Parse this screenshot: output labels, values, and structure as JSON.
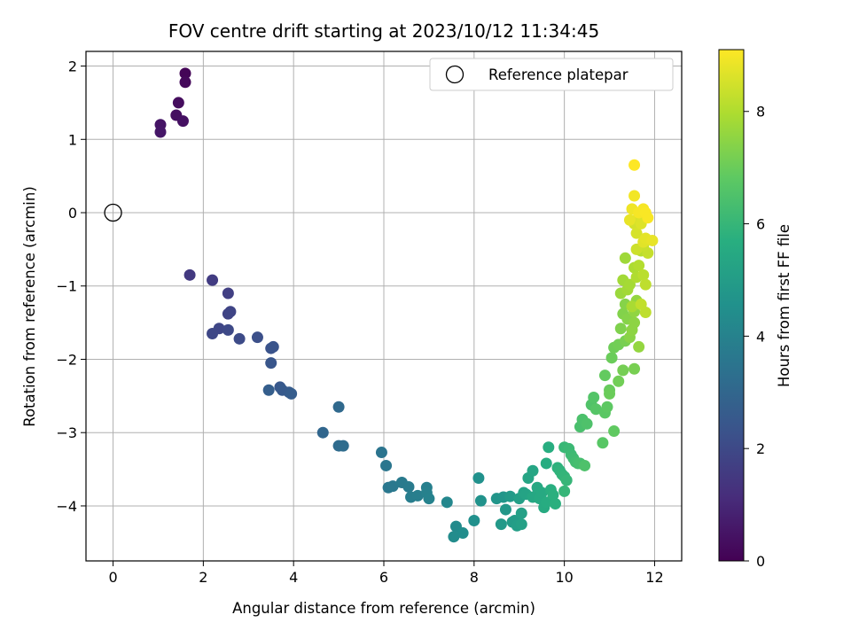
{
  "chart_data": {
    "type": "scatter",
    "title": "FOV centre drift starting at 2023/10/12 11:34:45",
    "xlabel": "Angular distance from reference (arcmin)",
    "ylabel": "Rotation from reference (arcmin)",
    "xlim": [
      -0.6,
      12.6
    ],
    "ylim": [
      -4.75,
      2.2
    ],
    "xticks": [
      0,
      2,
      4,
      6,
      8,
      10,
      12
    ],
    "yticks": [
      -4,
      -3,
      -2,
      -1,
      0,
      1,
      2
    ],
    "grid": true,
    "legend": {
      "placement": "top-right",
      "entries": [
        "Reference platepar"
      ]
    },
    "reference_point": {
      "x": 0,
      "y": 0
    },
    "colorbar": {
      "label": "Hours from first FF file",
      "colormap": "viridis",
      "range": [
        0,
        9.1
      ],
      "ticks": [
        0,
        2,
        4,
        6,
        8
      ]
    },
    "points": [
      [
        1.6,
        1.9,
        0.1
      ],
      [
        1.6,
        1.78,
        0.2
      ],
      [
        1.45,
        1.5,
        0.3
      ],
      [
        1.4,
        1.33,
        0.35
      ],
      [
        1.55,
        1.25,
        0.4
      ],
      [
        1.05,
        1.2,
        0.5
      ],
      [
        1.05,
        1.1,
        0.55
      ],
      [
        1.7,
        -0.85,
        1.5
      ],
      [
        2.2,
        -0.92,
        1.6
      ],
      [
        2.55,
        -1.1,
        1.7
      ],
      [
        2.55,
        -1.38,
        1.8
      ],
      [
        2.6,
        -1.35,
        1.85
      ],
      [
        2.35,
        -1.58,
        1.9
      ],
      [
        2.2,
        -1.65,
        1.95
      ],
      [
        2.55,
        -1.6,
        2.0
      ],
      [
        2.8,
        -1.72,
        2.05
      ],
      [
        3.2,
        -1.7,
        2.2
      ],
      [
        3.5,
        -1.85,
        2.3
      ],
      [
        3.55,
        -1.83,
        2.35
      ],
      [
        3.5,
        -2.05,
        2.4
      ],
      [
        3.7,
        -2.38,
        2.5
      ],
      [
        3.75,
        -2.42,
        2.55
      ],
      [
        3.9,
        -2.45,
        2.6
      ],
      [
        3.95,
        -2.47,
        2.65
      ],
      [
        3.45,
        -2.42,
        2.7
      ],
      [
        4.65,
        -3.0,
        3.0
      ],
      [
        5.0,
        -2.65,
        3.1
      ],
      [
        5.0,
        -3.18,
        3.15
      ],
      [
        5.1,
        -3.18,
        3.2
      ],
      [
        5.95,
        -3.27,
        3.5
      ],
      [
        6.05,
        -3.45,
        3.55
      ],
      [
        6.1,
        -3.75,
        3.6
      ],
      [
        6.2,
        -3.73,
        3.65
      ],
      [
        6.4,
        -3.68,
        3.7
      ],
      [
        6.55,
        -3.74,
        3.75
      ],
      [
        6.6,
        -3.88,
        3.8
      ],
      [
        6.75,
        -3.86,
        3.85
      ],
      [
        6.95,
        -3.75,
        3.9
      ],
      [
        6.95,
        -3.82,
        3.95
      ],
      [
        7.0,
        -3.9,
        4.0
      ],
      [
        7.4,
        -3.95,
        4.2
      ],
      [
        7.6,
        -4.28,
        4.3
      ],
      [
        7.55,
        -4.42,
        4.35
      ],
      [
        7.75,
        -4.37,
        4.4
      ],
      [
        8.0,
        -4.2,
        4.5
      ],
      [
        8.1,
        -3.62,
        4.55
      ],
      [
        8.15,
        -3.93,
        4.6
      ],
      [
        8.5,
        -3.9,
        4.7
      ],
      [
        8.65,
        -3.88,
        4.75
      ],
      [
        8.7,
        -4.05,
        4.8
      ],
      [
        8.6,
        -4.25,
        4.85
      ],
      [
        8.8,
        -3.87,
        4.9
      ],
      [
        8.85,
        -4.22,
        4.95
      ],
      [
        8.9,
        -4.2,
        5.0
      ],
      [
        8.95,
        -4.27,
        5.05
      ],
      [
        9.0,
        -3.9,
        5.1
      ],
      [
        9.05,
        -4.1,
        5.15
      ],
      [
        9.05,
        -4.25,
        5.15
      ],
      [
        9.1,
        -3.82,
        5.2
      ],
      [
        9.15,
        -3.84,
        5.25
      ],
      [
        9.2,
        -3.62,
        5.3
      ],
      [
        9.3,
        -3.52,
        5.35
      ],
      [
        9.3,
        -3.88,
        5.4
      ],
      [
        9.4,
        -3.75,
        5.45
      ],
      [
        9.45,
        -3.9,
        5.5
      ],
      [
        9.5,
        -3.82,
        5.5
      ],
      [
        9.55,
        -4.02,
        5.55
      ],
      [
        9.6,
        -3.95,
        5.6
      ],
      [
        9.6,
        -3.42,
        5.6
      ],
      [
        9.65,
        -3.2,
        5.65
      ],
      [
        9.7,
        -3.78,
        5.7
      ],
      [
        9.75,
        -3.85,
        5.75
      ],
      [
        9.8,
        -3.97,
        5.75
      ],
      [
        9.85,
        -3.48,
        5.8
      ],
      [
        9.9,
        -3.52,
        5.85
      ],
      [
        9.95,
        -3.57,
        5.9
      ],
      [
        10.0,
        -3.6,
        5.95
      ],
      [
        10.0,
        -3.8,
        6.0
      ],
      [
        10.05,
        -3.65,
        6.0
      ],
      [
        10.0,
        -3.2,
        6.05
      ],
      [
        10.1,
        -3.22,
        6.1
      ],
      [
        10.15,
        -3.3,
        6.15
      ],
      [
        10.2,
        -3.35,
        6.2
      ],
      [
        10.25,
        -3.4,
        6.25
      ],
      [
        10.3,
        -3.42,
        6.3
      ],
      [
        10.35,
        -3.42,
        6.35
      ],
      [
        10.35,
        -2.92,
        6.4
      ],
      [
        10.4,
        -2.82,
        6.45
      ],
      [
        10.45,
        -3.45,
        6.5
      ],
      [
        10.5,
        -2.88,
        6.5
      ],
      [
        10.6,
        -2.62,
        6.55
      ],
      [
        10.65,
        -2.52,
        6.6
      ],
      [
        10.7,
        -2.68,
        6.65
      ],
      [
        10.85,
        -3.14,
        6.7
      ],
      [
        10.9,
        -2.73,
        6.75
      ],
      [
        10.95,
        -2.65,
        6.8
      ],
      [
        11.1,
        -2.98,
        6.85
      ],
      [
        10.9,
        -2.22,
        6.9
      ],
      [
        11.0,
        -2.42,
        6.95
      ],
      [
        11.05,
        -1.98,
        7.0
      ],
      [
        11.0,
        -2.47,
        7.0
      ],
      [
        11.1,
        -1.84,
        7.05
      ],
      [
        11.2,
        -2.3,
        7.1
      ],
      [
        11.2,
        -1.8,
        7.1
      ],
      [
        11.3,
        -2.15,
        7.15
      ],
      [
        11.35,
        -1.75,
        7.2
      ],
      [
        11.55,
        -2.13,
        7.2
      ],
      [
        11.25,
        -1.58,
        7.3
      ],
      [
        11.3,
        -1.38,
        7.35
      ],
      [
        11.35,
        -1.25,
        7.4
      ],
      [
        11.4,
        -1.45,
        7.4
      ],
      [
        11.45,
        -1.7,
        7.45
      ],
      [
        11.5,
        -1.6,
        7.5
      ],
      [
        11.55,
        -1.5,
        7.5
      ],
      [
        11.55,
        -1.35,
        7.55
      ],
      [
        11.6,
        -1.2,
        7.6
      ],
      [
        11.65,
        -1.83,
        7.6
      ],
      [
        11.25,
        -1.1,
        7.7
      ],
      [
        11.35,
        -0.62,
        7.75
      ],
      [
        11.3,
        -0.92,
        7.8
      ],
      [
        11.4,
        -1.05,
        7.8
      ],
      [
        11.45,
        -0.98,
        7.85
      ],
      [
        11.5,
        -1.28,
        7.9
      ],
      [
        11.55,
        -0.75,
        7.95
      ],
      [
        11.6,
        -0.88,
        8.0
      ],
      [
        11.65,
        -0.72,
        8.05
      ],
      [
        11.7,
        -0.52,
        8.1
      ],
      [
        11.75,
        -0.85,
        8.15
      ],
      [
        11.8,
        -0.98,
        8.2
      ],
      [
        11.8,
        -1.36,
        8.2
      ],
      [
        11.7,
        -1.25,
        8.25
      ],
      [
        11.85,
        -0.55,
        8.3
      ],
      [
        11.75,
        -0.45,
        8.35
      ],
      [
        11.6,
        -0.5,
        8.4
      ],
      [
        11.55,
        -0.15,
        8.5
      ],
      [
        11.6,
        -0.28,
        8.55
      ],
      [
        11.65,
        -0.05,
        8.6
      ],
      [
        11.7,
        -0.15,
        8.65
      ],
      [
        11.75,
        -0.4,
        8.7
      ],
      [
        11.8,
        -0.35,
        8.75
      ],
      [
        11.95,
        -0.38,
        8.8
      ],
      [
        11.45,
        -0.1,
        8.8
      ],
      [
        11.5,
        0.05,
        8.9
      ],
      [
        11.55,
        0.23,
        8.95
      ],
      [
        11.65,
        0.0,
        9.0
      ],
      [
        11.75,
        0.05,
        9.0
      ],
      [
        11.8,
        0.0,
        9.05
      ],
      [
        11.85,
        -0.07,
        9.05
      ],
      [
        11.55,
        0.65,
        9.1
      ]
    ]
  }
}
